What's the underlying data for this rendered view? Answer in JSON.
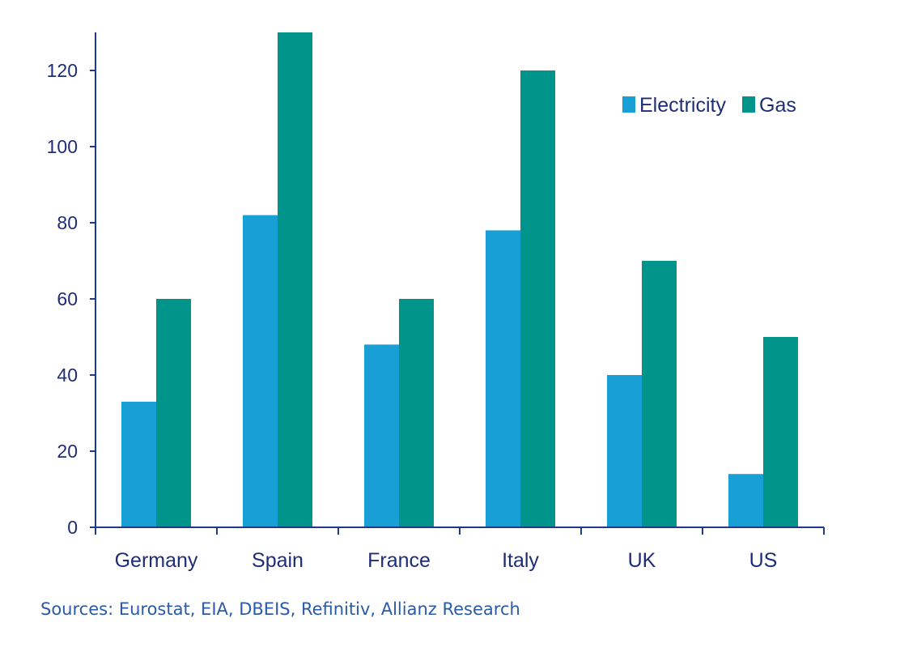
{
  "chart_data": {
    "type": "bar",
    "categories": [
      "Germany",
      "Spain",
      "France",
      "Italy",
      "UK",
      "US"
    ],
    "series": [
      {
        "name": "Electricity",
        "color": "#18a0d6",
        "values": [
          33,
          82,
          48,
          78,
          40,
          14
        ]
      },
      {
        "name": "Gas",
        "color": "#00948a",
        "values": [
          60,
          130,
          60,
          120,
          70,
          50
        ]
      }
    ],
    "title": "",
    "xlabel": "",
    "ylabel": "",
    "ylim": [
      0,
      130
    ],
    "yticks": [
      0,
      20,
      40,
      60,
      80,
      100,
      120
    ],
    "grid": false,
    "legend": "top-right",
    "axis_color": "#1e3a8a"
  },
  "source": "Sources: Eurostat, EIA, DBEIS, Refinitiv, Allianz Research"
}
